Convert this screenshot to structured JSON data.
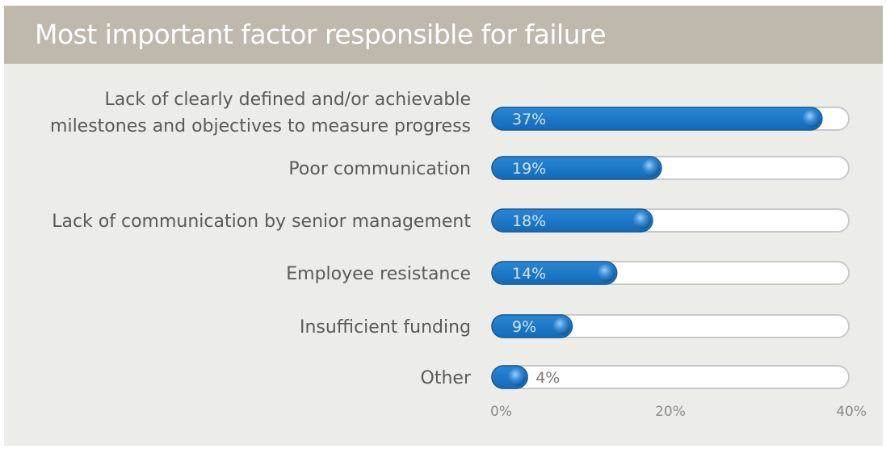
{
  "chart_data": {
    "type": "bar",
    "orientation": "horizontal",
    "title": "Most important factor responsible for failure",
    "categories": [
      "Lack of clearly defined and/or achievable\nmilestones and objectives to measure progress",
      "Poor communication",
      "Lack of communication by senior management",
      "Employee resistance",
      "Insufficient funding",
      "Other"
    ],
    "values": [
      37,
      19,
      18,
      14,
      9,
      4
    ],
    "value_labels": [
      "37%",
      "19%",
      "18%",
      "14%",
      "9%",
      "4%"
    ],
    "xlim": [
      0,
      40
    ],
    "xticks": [
      0,
      20,
      40
    ],
    "xtick_labels": [
      "0%",
      "20%",
      "40%"
    ],
    "grid": false,
    "colors": {
      "bar": "#1a75c2",
      "bar_dark": "#135a97",
      "track": "#ffffff",
      "track_border": "#c9c9c9",
      "header": "#bfb9ad",
      "background": "#ecede8",
      "knob": "#4c9be0"
    }
  }
}
